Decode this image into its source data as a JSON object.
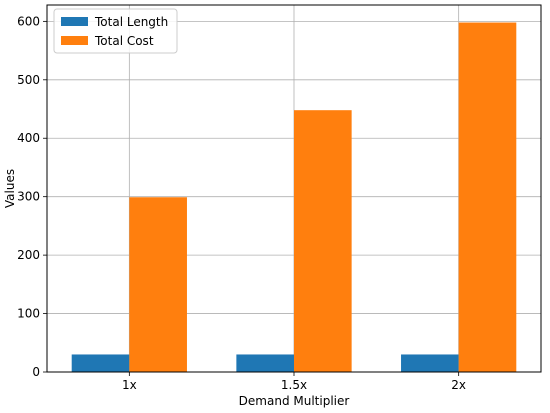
{
  "chart_data": {
    "type": "bar",
    "categories": [
      "1x",
      "1.5x",
      "2x"
    ],
    "series": [
      {
        "name": "Total Length",
        "values": [
          30,
          30,
          30
        ],
        "color": "#1f77b4"
      },
      {
        "name": "Total Cost",
        "values": [
          299,
          448,
          598
        ],
        "color": "#ff7f0e"
      }
    ],
    "title": "",
    "xlabel": "Demand Multiplier",
    "ylabel": "Values",
    "ylim": [
      0,
      628
    ],
    "yticks": [
      0,
      100,
      200,
      300,
      400,
      500,
      600
    ],
    "grid": true,
    "legend_position": "top-left"
  }
}
